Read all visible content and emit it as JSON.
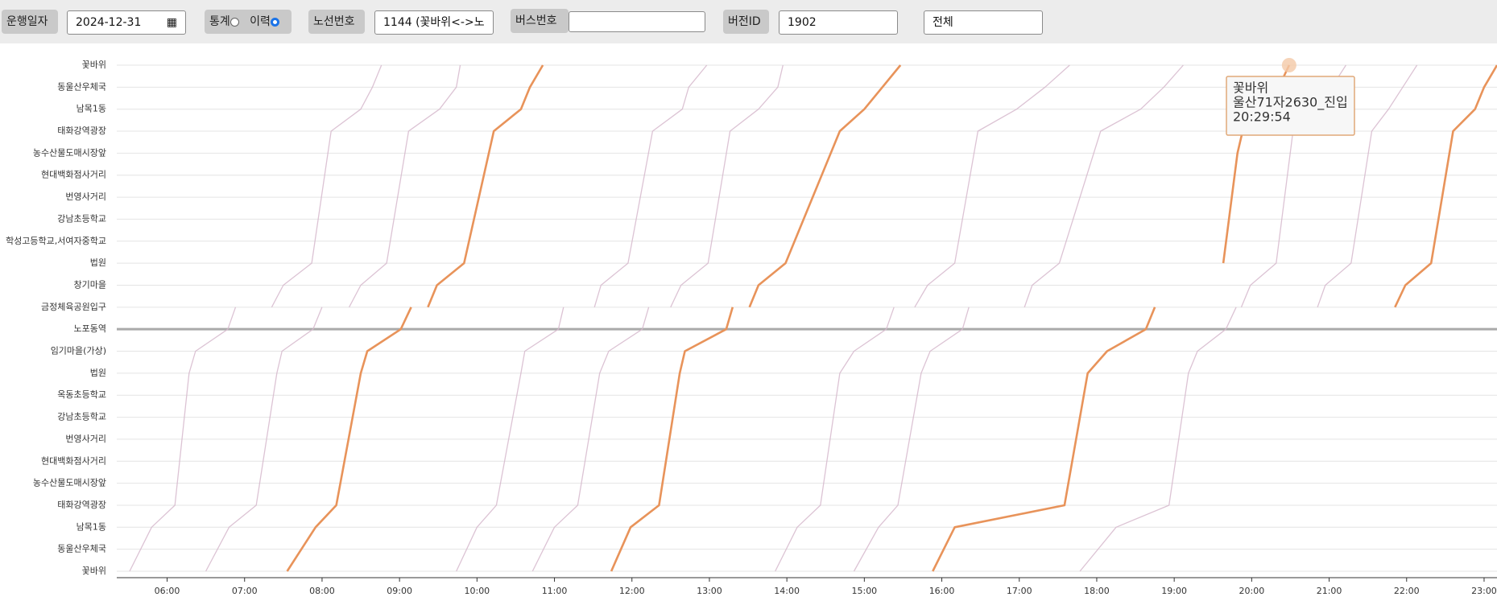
{
  "toolbar": {
    "date_label": "운행일자",
    "date_value": "2024-12-31",
    "stat_label": "통계",
    "history_label": "이력",
    "route_label": "노선번호",
    "route_value": "1144 (꽃바위<->노",
    "bus_label": "버스번호",
    "version_label": "버전ID",
    "version_value": "1902",
    "filter_value": "전체"
  },
  "chart_data": {
    "type": "line",
    "y_categories": [
      "꽃바위",
      "동울산우체국",
      "남목1동",
      "태화강역광장",
      "농수산물도매시장앞",
      "현대백화점사거리",
      "번영사거리",
      "강남초등학교",
      "학성고등학교,서여자중학교",
      "법원",
      "창기마을",
      "금정체육공원입구",
      "노포동역",
      "임기마을(가상)",
      "법원",
      "옥동초등학교",
      "강남초등학교",
      "번영사거리",
      "현대백화점사거리",
      "농수산물도매시장앞",
      "태화강역광장",
      "남목1동",
      "동울산우체국",
      "꽃바위"
    ],
    "xlim": [
      "05:21",
      "23:10"
    ],
    "xticks": [
      "06:00",
      "07:00",
      "08:00",
      "09:00",
      "10:00",
      "11:00",
      "12:00",
      "13:00",
      "14:00",
      "15:00",
      "16:00",
      "17:00",
      "18:00",
      "19:00",
      "20:00",
      "21:00",
      "22:00",
      "23:00"
    ],
    "divider": 12,
    "grid": true,
    "series": [
      {
        "color": "#d6b9cc",
        "highlight": false,
        "x": [
          "05:31",
          "05:48",
          "06:06",
          "06:17",
          "06:22",
          "06:47",
          "06:53"
        ],
        "values": [
          23,
          21,
          20,
          14,
          13,
          12,
          11
        ]
      },
      {
        "color": "#d6b9cc",
        "highlight": false,
        "x": [
          "06:30",
          "06:48",
          "07:09",
          "07:25",
          "07:29",
          "07:53",
          "08:00"
        ],
        "values": [
          23,
          21,
          20,
          14,
          13,
          12,
          11
        ]
      },
      {
        "color": "#e8935a",
        "highlight": true,
        "x": [
          "07:33",
          "07:55",
          "08:11",
          "08:30",
          "08:35",
          "09:01",
          "09:09"
        ],
        "values": [
          23,
          21,
          20,
          14,
          13,
          12,
          11
        ]
      },
      {
        "color": "#d6b9cc",
        "highlight": false,
        "x": [
          "09:44",
          "10:00",
          "10:15",
          "10:34",
          "10:37",
          "11:03",
          "11:07"
        ],
        "values": [
          23,
          21,
          20,
          14,
          13,
          12,
          11
        ]
      },
      {
        "color": "#d6b9cc",
        "highlight": false,
        "x": [
          "10:43",
          "11:00",
          "11:18",
          "11:35",
          "11:42",
          "12:08",
          "12:13"
        ],
        "values": [
          23,
          21,
          20,
          14,
          13,
          12,
          11
        ]
      },
      {
        "color": "#e8935a",
        "highlight": true,
        "x": [
          "11:44",
          "11:59",
          "12:21",
          "12:37",
          "12:41",
          "13:13",
          "13:18"
        ],
        "values": [
          23,
          21,
          20,
          14,
          13,
          12,
          11
        ]
      },
      {
        "color": "#d6b9cc",
        "highlight": false,
        "x": [
          "13:51",
          "14:08",
          "14:26",
          "14:41",
          "14:52",
          "15:17",
          "15:23"
        ],
        "values": [
          23,
          21,
          20,
          14,
          13,
          12,
          11
        ]
      },
      {
        "color": "#d6b9cc",
        "highlight": false,
        "x": [
          "14:52",
          "15:11",
          "15:26",
          "15:44",
          "15:51",
          "16:16",
          "16:21"
        ],
        "values": [
          23,
          21,
          20,
          14,
          13,
          12,
          11
        ]
      },
      {
        "color": "#e8935a",
        "highlight": true,
        "x": [
          "15:53",
          "16:10",
          "17:35",
          "17:53",
          "18:08",
          "18:38",
          "18:45"
        ],
        "values": [
          23,
          21,
          20,
          14,
          13,
          12,
          11
        ]
      },
      {
        "color": "#d6b9cc",
        "highlight": false,
        "x": [
          "17:47",
          "18:15",
          "18:56",
          "19:11",
          "19:18",
          "19:40",
          "19:48"
        ],
        "values": [
          23,
          21,
          20,
          14,
          13,
          12,
          11
        ]
      },
      {
        "color": "#d6b9cc",
        "highlight": false,
        "x": [
          "07:21",
          "07:30",
          "07:52",
          "08:07",
          "08:30",
          "08:39",
          "08:46"
        ],
        "values": [
          11,
          10,
          9,
          3,
          2,
          1,
          0
        ]
      },
      {
        "color": "#d6b9cc",
        "highlight": false,
        "x": [
          "08:21",
          "08:30",
          "08:50",
          "09:07",
          "09:31",
          "09:44",
          "09:47"
        ],
        "values": [
          11,
          10,
          9,
          3,
          2,
          1,
          0
        ]
      },
      {
        "color": "#e8935a",
        "highlight": true,
        "x": [
          "09:22",
          "09:29",
          "09:50",
          "10:13",
          "10:34",
          "10:41",
          "10:51"
        ],
        "values": [
          11,
          10,
          9,
          3,
          2,
          1,
          0
        ]
      },
      {
        "color": "#d6b9cc",
        "highlight": false,
        "x": [
          "11:31",
          "11:36",
          "11:57",
          "12:16",
          "12:39",
          "12:44",
          "12:58"
        ],
        "values": [
          11,
          10,
          9,
          3,
          2,
          1,
          0
        ]
      },
      {
        "color": "#d6b9cc",
        "highlight": false,
        "x": [
          "12:30",
          "12:38",
          "12:59",
          "13:16",
          "13:38",
          "13:53",
          "13:57"
        ],
        "values": [
          11,
          10,
          9,
          3,
          2,
          1,
          0
        ]
      },
      {
        "color": "#e8935a",
        "highlight": true,
        "x": [
          "13:31",
          "13:38",
          "13:59",
          "14:41",
          "15:00",
          "15:14",
          "15:28"
        ],
        "values": [
          11,
          10,
          9,
          3,
          2,
          1,
          0
        ]
      },
      {
        "color": "#d6b9cc",
        "highlight": false,
        "x": [
          "15:39",
          "15:49",
          "16:10",
          "16:28",
          "16:58",
          "17:20",
          "17:39"
        ],
        "values": [
          11,
          10,
          9,
          3,
          2,
          1,
          0
        ]
      },
      {
        "color": "#d6b9cc",
        "highlight": false,
        "x": [
          "17:04",
          "17:10",
          "17:31",
          "18:03",
          "18:34",
          "18:52",
          "19:07"
        ],
        "values": [
          11,
          10,
          9,
          3,
          2,
          1,
          0
        ]
      },
      {
        "color": "#e8935a",
        "highlight": true,
        "x": [
          "19:38",
          "19:49",
          "19:53",
          "20:08",
          "20:21",
          "20:29"
        ],
        "values": [
          9,
          4,
          3,
          2,
          1,
          0
        ]
      },
      {
        "color": "#d6b9cc",
        "highlight": false,
        "x": [
          "19:52",
          "19:59",
          "20:19",
          "20:32",
          "20:47",
          "21:02",
          "21:13"
        ],
        "values": [
          11,
          10,
          9,
          3,
          2,
          1,
          0
        ]
      },
      {
        "color": "#d6b9cc",
        "highlight": false,
        "x": [
          "20:51",
          "20:57",
          "21:17",
          "21:33",
          "21:46",
          "21:57",
          "22:08"
        ],
        "values": [
          11,
          10,
          9,
          3,
          2,
          1,
          0
        ]
      },
      {
        "color": "#e8935a",
        "highlight": true,
        "x": [
          "21:51",
          "21:59",
          "22:19",
          "22:36",
          "22:53",
          "23:00",
          "23:10"
        ],
        "values": [
          11,
          10,
          9,
          3,
          2,
          1,
          0
        ]
      }
    ],
    "tooltip": {
      "series": 18,
      "point": 5,
      "lines": [
        "꽃바위",
        "울산71자2630_진입",
        "20:29:54"
      ]
    }
  }
}
